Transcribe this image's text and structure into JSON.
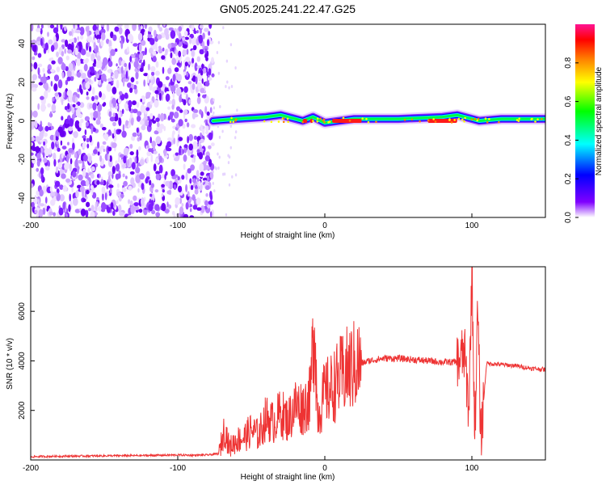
{
  "chart_data": [
    {
      "type": "heatmap",
      "title": "GN05.2025.241.22.47.G25",
      "xlabel": "Height of straight line (km)",
      "ylabel": "Frequency (Hz)",
      "xlim": [
        -200,
        150
      ],
      "ylim": [
        -50,
        50
      ],
      "xticks": [
        -200,
        -100,
        0,
        100
      ],
      "yticks": [
        -40,
        -20,
        0,
        20,
        40
      ],
      "noise_region_x": [
        -200,
        -76
      ],
      "signal_track": {
        "x": [
          -76,
          -60,
          -40,
          -30,
          -15,
          -8,
          0,
          20,
          50,
          80,
          90,
          95,
          100,
          105,
          120,
          150
        ],
        "frequency": [
          0,
          1,
          2,
          3,
          0,
          2,
          -1,
          1,
          1,
          2,
          3,
          2,
          1,
          0,
          1,
          1
        ]
      },
      "high_amplitude_x": [
        [
          -15,
          -12
        ],
        [
          -10,
          -8
        ],
        [
          5,
          25
        ],
        [
          70,
          90
        ]
      ],
      "colorbar": {
        "label": "Normalized spectral amplitude",
        "range": [
          0,
          1
        ],
        "ticks": [
          "0.0",
          "0.2",
          "0.4",
          "0.6",
          "0.8"
        ],
        "colors": [
          "#ffffff",
          "#8000ff",
          "#0000ff",
          "#00ffff",
          "#00ff00",
          "#ffff00",
          "#ff8000",
          "#ff0000",
          "#ff1493"
        ]
      }
    },
    {
      "type": "line",
      "xlabel": "Height of straight line (km)",
      "ylabel": "SNR (10 * v/v)",
      "xlim": [
        -200,
        150
      ],
      "ylim": [
        0,
        7800
      ],
      "xticks": [
        -200,
        -100,
        0,
        100
      ],
      "yticks": [
        2000,
        4000,
        6000
      ],
      "color": "#ee3333",
      "series": [
        {
          "name": "SNR",
          "x": [
            -200,
            -180,
            -160,
            -140,
            -120,
            -100,
            -90,
            -80,
            -72,
            -68,
            -65,
            -60,
            -55,
            -50,
            -45,
            -40,
            -35,
            -30,
            -25,
            -20,
            -15,
            -10,
            -7,
            -5,
            -2,
            0,
            5,
            10,
            15,
            20,
            30,
            40,
            50,
            60,
            70,
            80,
            90,
            95,
            98,
            100,
            102,
            104,
            106,
            110,
            120,
            130,
            140,
            150
          ],
          "y": [
            130,
            150,
            160,
            170,
            180,
            200,
            190,
            200,
            250,
            1300,
            500,
            800,
            900,
            1200,
            1000,
            1700,
            1500,
            1900,
            1600,
            2200,
            2100,
            2500,
            5800,
            1800,
            2300,
            2700,
            2900,
            3300,
            3600,
            3800,
            4000,
            4100,
            4100,
            4050,
            4000,
            3950,
            3950,
            4300,
            2000,
            7700,
            1100,
            6100,
            900,
            3900,
            3850,
            3800,
            3700,
            3650
          ]
        }
      ]
    }
  ]
}
